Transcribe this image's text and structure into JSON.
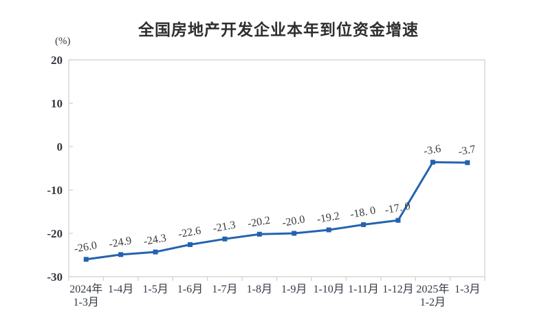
{
  "chart_data": {
    "type": "line",
    "title": "全国房地产开发企业本年到位资金增速",
    "unit_label": "(%)",
    "categories": [
      "2024年\n1-3月",
      "1-4月",
      "1-5月",
      "1-6月",
      "1-7月",
      "1-8月",
      "1-9月",
      "1-10月",
      "1-11月",
      "1-12月",
      "2025年\n1-2月",
      "1-3月"
    ],
    "values": [
      -26.0,
      -24.9,
      -24.3,
      -22.6,
      -21.3,
      -20.2,
      -20.0,
      -19.2,
      -18.0,
      -17.0,
      -3.6,
      -3.7
    ],
    "value_labels": [
      "-26.0",
      "-24.9",
      "-24.3",
      "-22.6",
      "-21.3",
      "-20.2",
      "-20.0",
      "-19.2",
      "-18. 0",
      "-17. 0",
      "-3.6",
      "-3.7"
    ],
    "xlabel": "",
    "ylabel": "(%)",
    "ylim": [
      -30,
      20
    ],
    "y_ticks": [
      20,
      10,
      0,
      -10,
      -20,
      -30
    ],
    "grid": false,
    "legend_position": "none",
    "line_color": "#2363ae",
    "axis_color": "#d7d7d7",
    "label_color": "#3a3a3a",
    "label_rotation_deg": -10
  }
}
